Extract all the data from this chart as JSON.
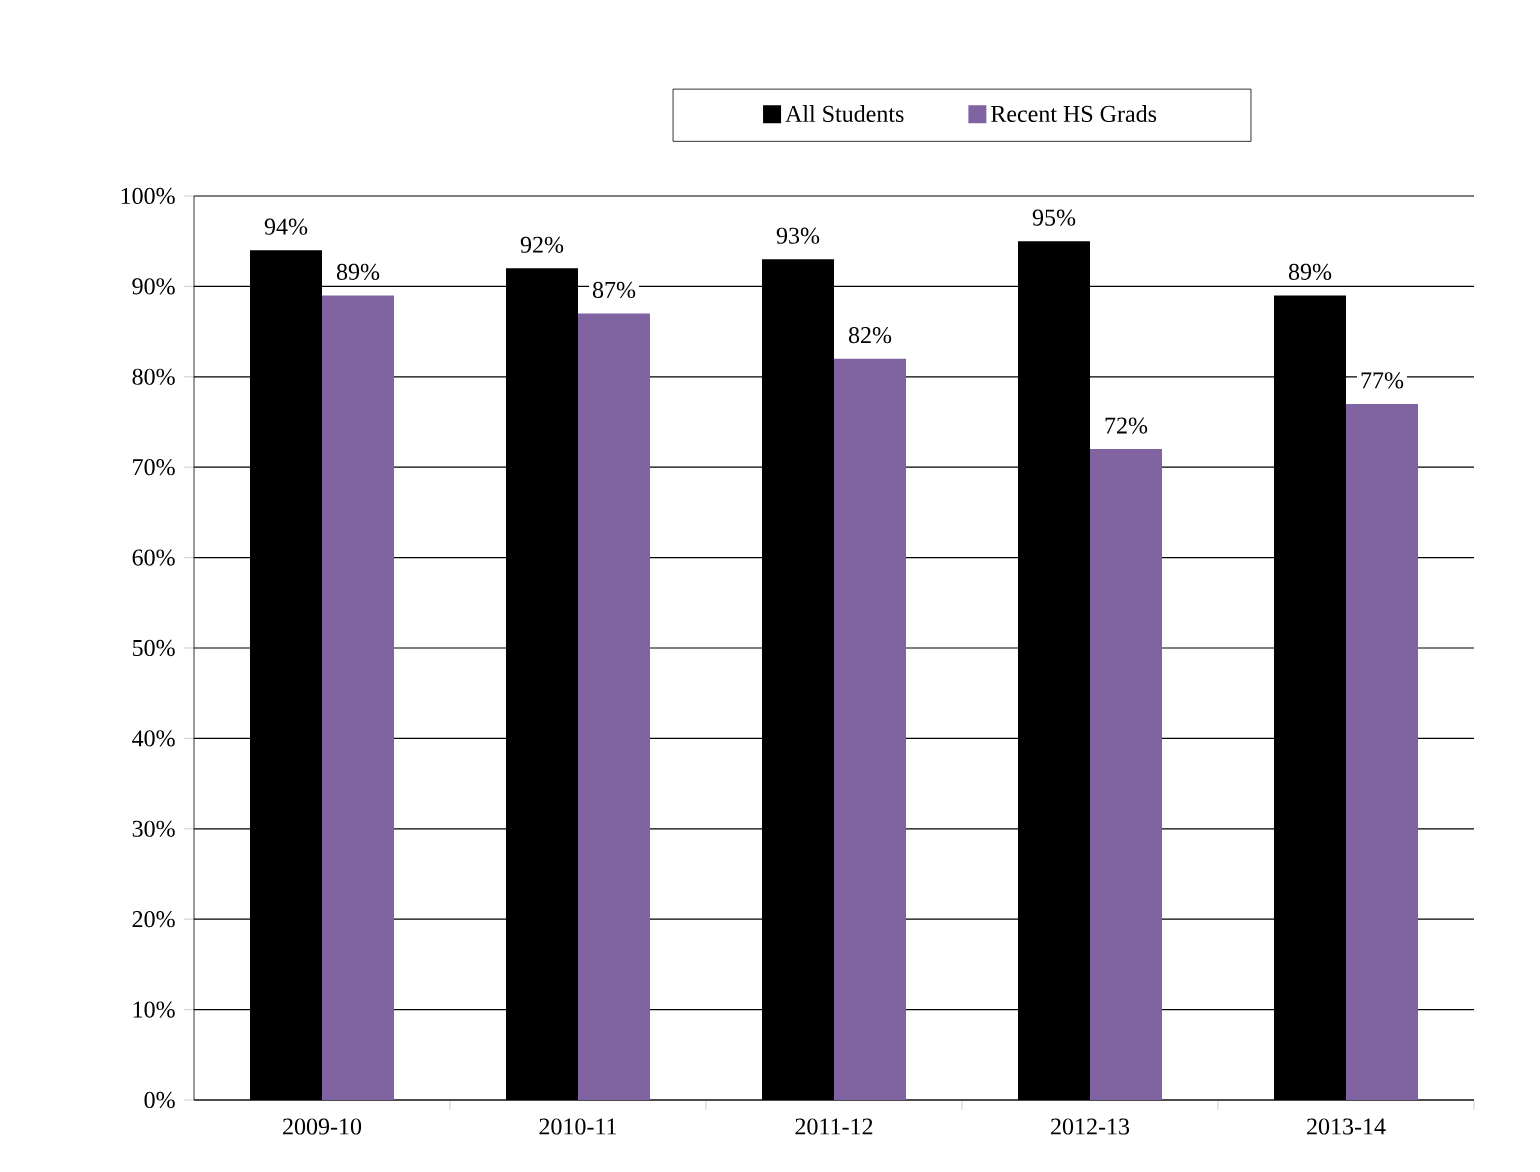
{
  "chart_data": {
    "type": "bar",
    "categories": [
      "2009-10",
      "2010-11",
      "2011-12",
      "2012-13",
      "2013-14"
    ],
    "series": [
      {
        "name": "All Students",
        "color": "#000000",
        "values": [
          94,
          92,
          93,
          95,
          89
        ],
        "value_labels": [
          "94%",
          "92%",
          "93%",
          "95%",
          "89%"
        ]
      },
      {
        "name": "Recent HS Grads",
        "color": "#8064a2",
        "values": [
          89,
          87,
          82,
          72,
          77
        ],
        "value_labels": [
          "89%",
          "87%",
          "82%",
          "72%",
          "77%"
        ]
      }
    ],
    "ylim": [
      0,
      100
    ],
    "yticks": [
      {
        "value": 0,
        "label": "0%"
      },
      {
        "value": 10,
        "label": "10%"
      },
      {
        "value": 20,
        "label": "20%"
      },
      {
        "value": 30,
        "label": "30%"
      },
      {
        "value": 40,
        "label": "40%"
      },
      {
        "value": 50,
        "label": "50%"
      },
      {
        "value": 60,
        "label": "60%"
      },
      {
        "value": 70,
        "label": "70%"
      },
      {
        "value": 80,
        "label": "80%"
      },
      {
        "value": 90,
        "label": "90%"
      },
      {
        "value": 100,
        "label": "100%"
      }
    ],
    "grid": "y",
    "legend": "top"
  }
}
